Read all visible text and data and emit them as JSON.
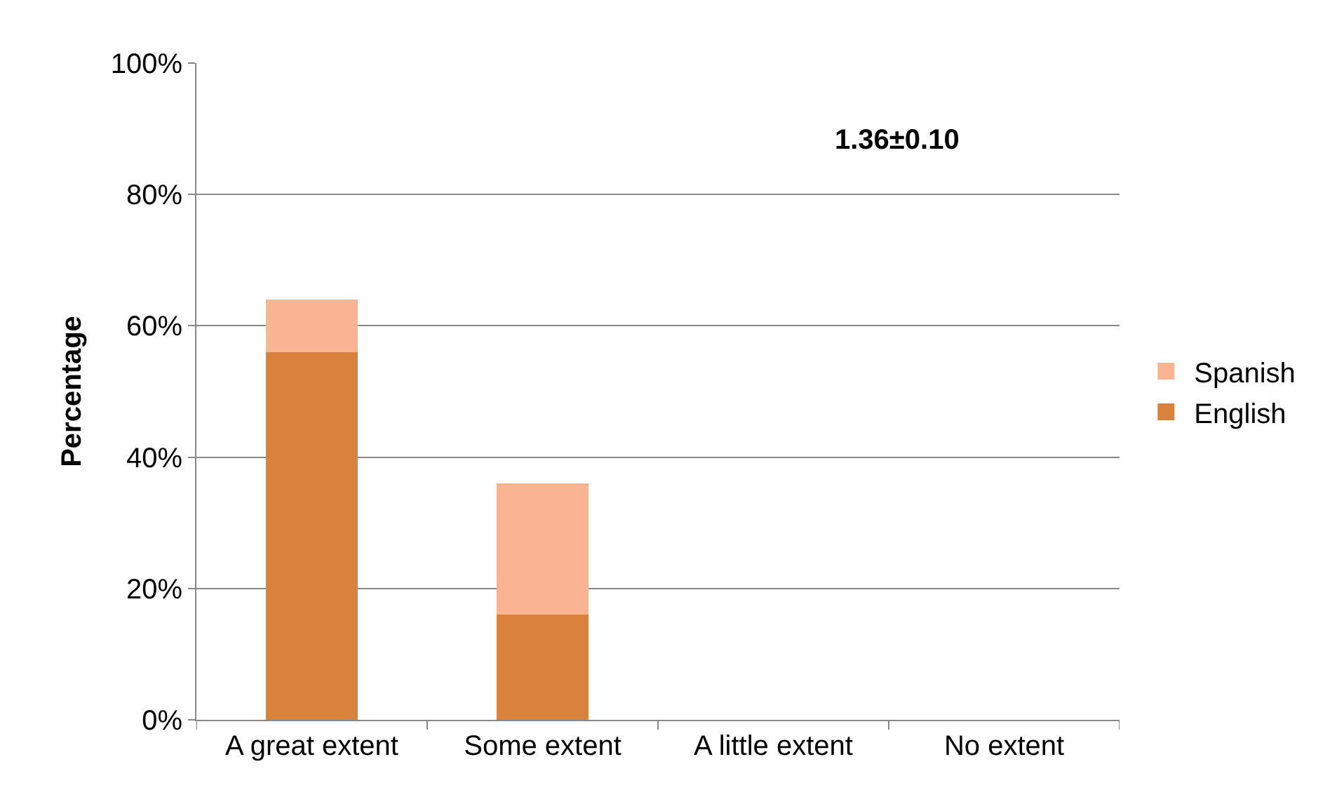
{
  "chart_data": {
    "type": "bar",
    "stacked": true,
    "ylabel": "Percentage",
    "categories": [
      "A great extent",
      "Some extent",
      "A little extent",
      "No extent"
    ],
    "series": [
      {
        "name": "English",
        "color": "#d9823b",
        "values": [
          56,
          16,
          0,
          0
        ]
      },
      {
        "name": "Spanish",
        "color": "#f9b592",
        "values": [
          8,
          20,
          0,
          0
        ]
      }
    ],
    "ylim": [
      0,
      100
    ],
    "yticks": [
      {
        "value": 0,
        "label": "0%"
      },
      {
        "value": 20,
        "label": "20%"
      },
      {
        "value": 40,
        "label": "40%"
      },
      {
        "value": 60,
        "label": "60%"
      },
      {
        "value": 80,
        "label": "80%"
      },
      {
        "value": 100,
        "label": "100%"
      }
    ],
    "grid": "y",
    "legend": "right",
    "annotations": [
      "1.36±0.10"
    ]
  }
}
